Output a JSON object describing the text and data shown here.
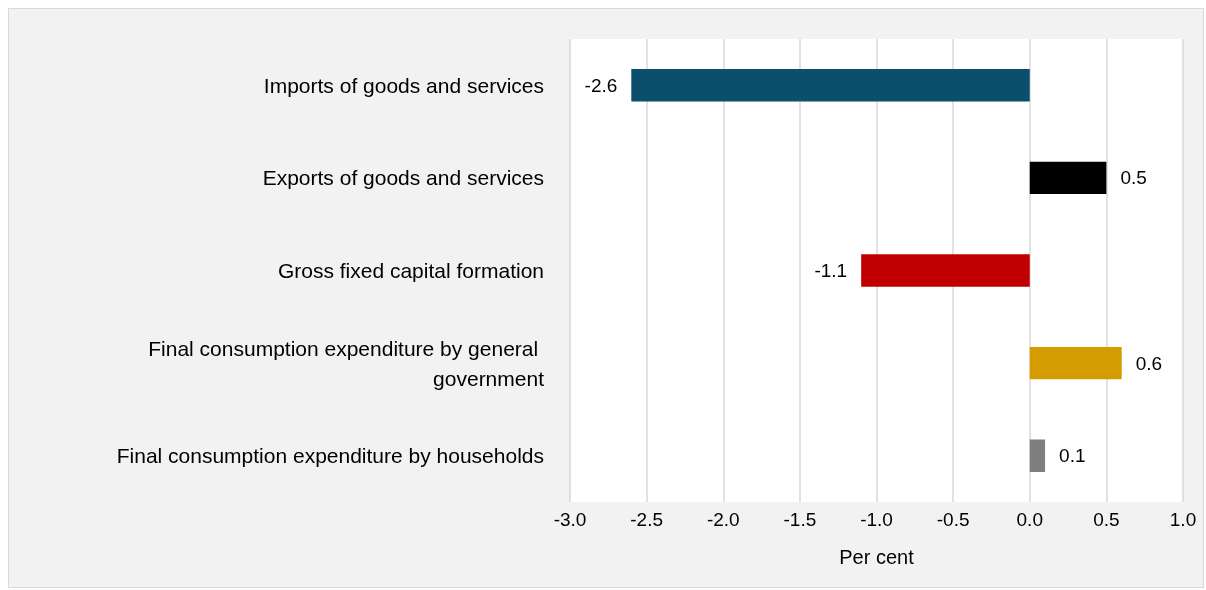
{
  "chart_data": {
    "type": "bar",
    "orientation": "horizontal",
    "xlabel": "Per cent",
    "categories": [
      "Imports of goods and services",
      "Exports of goods and services",
      "Gross fixed capital formation",
      "Final consumption expenditure by general government",
      "Final consumption expenditure by households"
    ],
    "values": [
      -2.6,
      0.5,
      -1.1,
      0.6,
      0.1
    ],
    "colors": [
      "#0b4f6c",
      "#000000",
      "#c00000",
      "#d49c00",
      "#7f7f7f"
    ],
    "data_labels": true,
    "xlim": [
      -3,
      1
    ],
    "xticks": [
      {
        "value": -3,
        "label": "-3.0"
      },
      {
        "value": -2.5,
        "label": "-2.5"
      },
      {
        "value": -2,
        "label": "-2.0"
      },
      {
        "value": -1.5,
        "label": "-1.5"
      },
      {
        "value": -1,
        "label": "-1.0"
      },
      {
        "value": -0.5,
        "label": "-0.5"
      },
      {
        "value": 0,
        "label": "0.0"
      },
      {
        "value": 0.5,
        "label": "0.5"
      },
      {
        "value": 1,
        "label": "1.0"
      }
    ],
    "grid": "x"
  }
}
